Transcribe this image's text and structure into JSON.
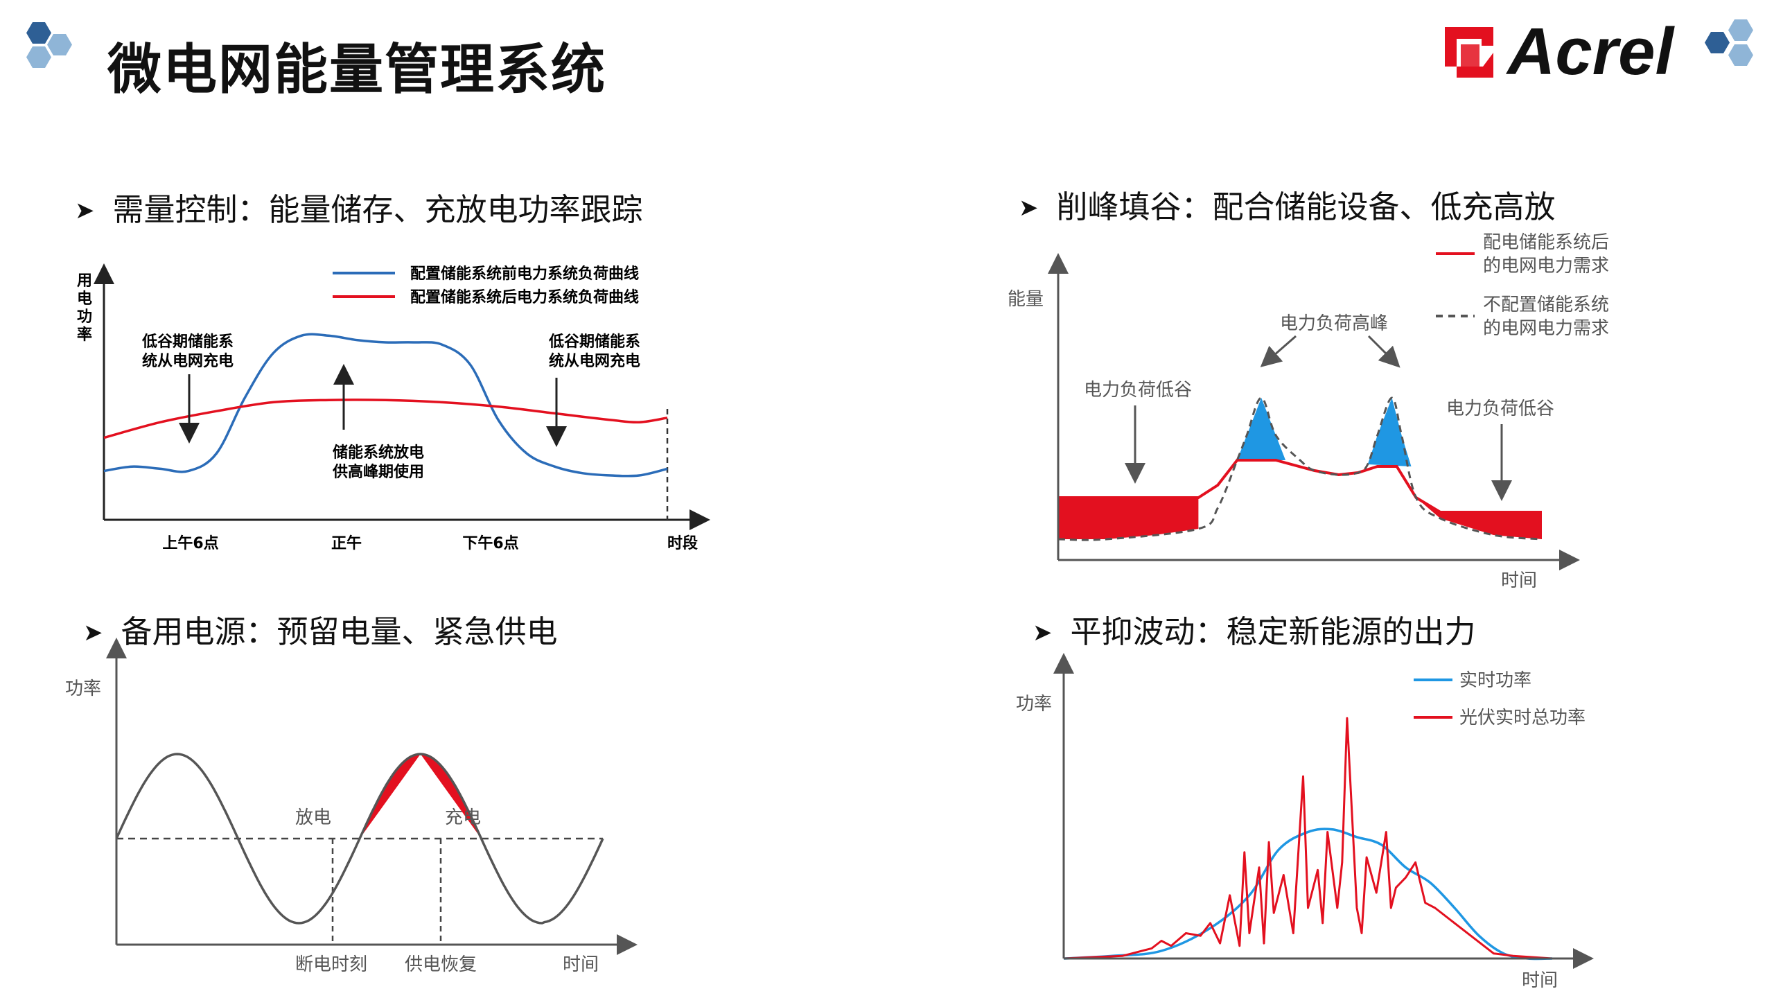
{
  "title": "微电网能量管理系统",
  "brand": "Acrel",
  "colors": {
    "red": "#e3101f",
    "blue": "#2b6cb8",
    "sky": "#1f97e3",
    "dark": "#222222",
    "grey": "#555555",
    "logo_blue": "#2e5f95",
    "logo_light": "#8fb5d7"
  },
  "sections": [
    {
      "heading": "需量控制：能量储存、充放电功率跟踪"
    },
    {
      "heading": "削峰填谷：配合储能设备、低充高放"
    },
    {
      "heading": "备用电源：预留电量、紧急供电"
    },
    {
      "heading": "平抑波动：稳定新能源的出力"
    }
  ],
  "chart_data": [
    {
      "type": "line",
      "ylabel": "用电功率",
      "xlabel": "时段",
      "x_ticks": [
        "上午6点",
        "正午",
        "下午6点"
      ],
      "series": [
        {
          "name": "配置储能系统前电力系统负荷曲线",
          "color": "#2b6cb8",
          "x": [
            0,
            0.05,
            0.1,
            0.15,
            0.2,
            0.25,
            0.3,
            0.35,
            0.4,
            0.45,
            0.5,
            0.55,
            0.6,
            0.65,
            0.7,
            0.75,
            0.8,
            0.85,
            0.9,
            0.95,
            1
          ],
          "y": [
            0.22,
            0.24,
            0.23,
            0.22,
            0.3,
            0.55,
            0.75,
            0.83,
            0.83,
            0.81,
            0.8,
            0.8,
            0.79,
            0.7,
            0.45,
            0.3,
            0.24,
            0.21,
            0.2,
            0.2,
            0.23
          ]
        },
        {
          "name": "配置储能系统后电力系统负荷曲线",
          "color": "#e3101f",
          "x": [
            0,
            0.1,
            0.2,
            0.3,
            0.4,
            0.5,
            0.6,
            0.7,
            0.8,
            0.9,
            0.95,
            1
          ],
          "y": [
            0.37,
            0.44,
            0.49,
            0.53,
            0.54,
            0.54,
            0.53,
            0.51,
            0.48,
            0.45,
            0.44,
            0.46
          ]
        }
      ],
      "annotations": [
        {
          "text": "低谷期储能系统从电网充电"
        },
        {
          "text": "储能系统放电供高峰期使用"
        },
        {
          "text": "低谷期储能系统从电网充电"
        }
      ]
    },
    {
      "type": "area",
      "ylabel": "能量",
      "xlabel": "时间",
      "series": [
        {
          "name": "配电储能系统后的电网电力需求",
          "color": "#e3101f",
          "x": [
            0,
            0.29,
            0.33,
            0.37,
            0.45,
            0.53,
            0.58,
            0.62,
            0.66,
            0.7,
            0.74,
            0.79,
            1
          ],
          "y": [
            0.3,
            0.3,
            0.36,
            0.48,
            0.48,
            0.43,
            0.41,
            0.42,
            0.45,
            0.45,
            0.3,
            0.23,
            0.23
          ]
        },
        {
          "name": "不配置储能系统的电网电力需求",
          "color": "#555555",
          "x": [
            0,
            0.1,
            0.29,
            0.33,
            0.37,
            0.39,
            0.42,
            0.45,
            0.5,
            0.53,
            0.58,
            0.62,
            0.64,
            0.66,
            0.69,
            0.71,
            0.74,
            0.79,
            0.9,
            1
          ],
          "y": [
            0.1,
            0.1,
            0.15,
            0.25,
            0.48,
            0.6,
            0.78,
            0.6,
            0.48,
            0.43,
            0.41,
            0.42,
            0.46,
            0.6,
            0.78,
            0.6,
            0.3,
            0.2,
            0.12,
            0.1
          ]
        }
      ],
      "annotations": [
        {
          "text": "电力负荷低谷"
        },
        {
          "text": "电力负荷高峰"
        },
        {
          "text": "电力负荷低谷"
        }
      ]
    },
    {
      "type": "line",
      "ylabel": "功率",
      "xlabel": "时间",
      "series": [
        {
          "name": "功率",
          "color": "#555555",
          "x": [
            0,
            0.125,
            0.25,
            0.375,
            0.5,
            0.625,
            0.75,
            0.875,
            1
          ],
          "y": [
            0,
            1,
            0,
            -1,
            0,
            1,
            0,
            -1,
            0.55
          ]
        }
      ],
      "annotations": [
        {
          "text": "放电"
        },
        {
          "text": "充电"
        },
        {
          "text": "断电时刻"
        },
        {
          "text": "供电恢复"
        }
      ]
    },
    {
      "type": "line",
      "ylabel": "功率",
      "xlabel": "时间",
      "series": [
        {
          "name": "实时功率",
          "color": "#1f97e3",
          "x": [
            0,
            0.1,
            0.2,
            0.3,
            0.38,
            0.44,
            0.5,
            0.55,
            0.6,
            0.65,
            0.7,
            0.75,
            0.8,
            0.85,
            0.9,
            0.95,
            1
          ],
          "y": [
            0,
            0.01,
            0.03,
            0.12,
            0.25,
            0.43,
            0.5,
            0.51,
            0.48,
            0.45,
            0.36,
            0.3,
            0.2,
            0.09,
            0.02,
            0,
            0
          ]
        },
        {
          "name": "光伏实时总功率",
          "color": "#e3101f",
          "x": [
            0,
            0.12,
            0.18,
            0.2,
            0.22,
            0.25,
            0.28,
            0.3,
            0.32,
            0.34,
            0.36,
            0.37,
            0.38,
            0.4,
            0.41,
            0.42,
            0.43,
            0.45,
            0.47,
            0.49,
            0.5,
            0.52,
            0.53,
            0.54,
            0.56,
            0.57,
            0.58,
            0.6,
            0.61,
            0.62,
            0.64,
            0.66,
            0.67,
            0.68,
            0.7,
            0.72,
            0.74,
            0.76,
            0.8,
            0.84,
            0.88,
            0.92,
            1
          ],
          "y": [
            0,
            0.01,
            0.04,
            0.07,
            0.05,
            0.1,
            0.09,
            0.14,
            0.06,
            0.25,
            0.05,
            0.42,
            0.1,
            0.36,
            0.06,
            0.46,
            0.18,
            0.33,
            0.1,
            0.72,
            0.2,
            0.35,
            0.14,
            0.5,
            0.2,
            0.38,
            0.95,
            0.2,
            0.1,
            0.4,
            0.26,
            0.5,
            0.2,
            0.28,
            0.32,
            0.38,
            0.22,
            0.2,
            0.14,
            0.08,
            0.02,
            0.01,
            0
          ]
        }
      ]
    }
  ]
}
